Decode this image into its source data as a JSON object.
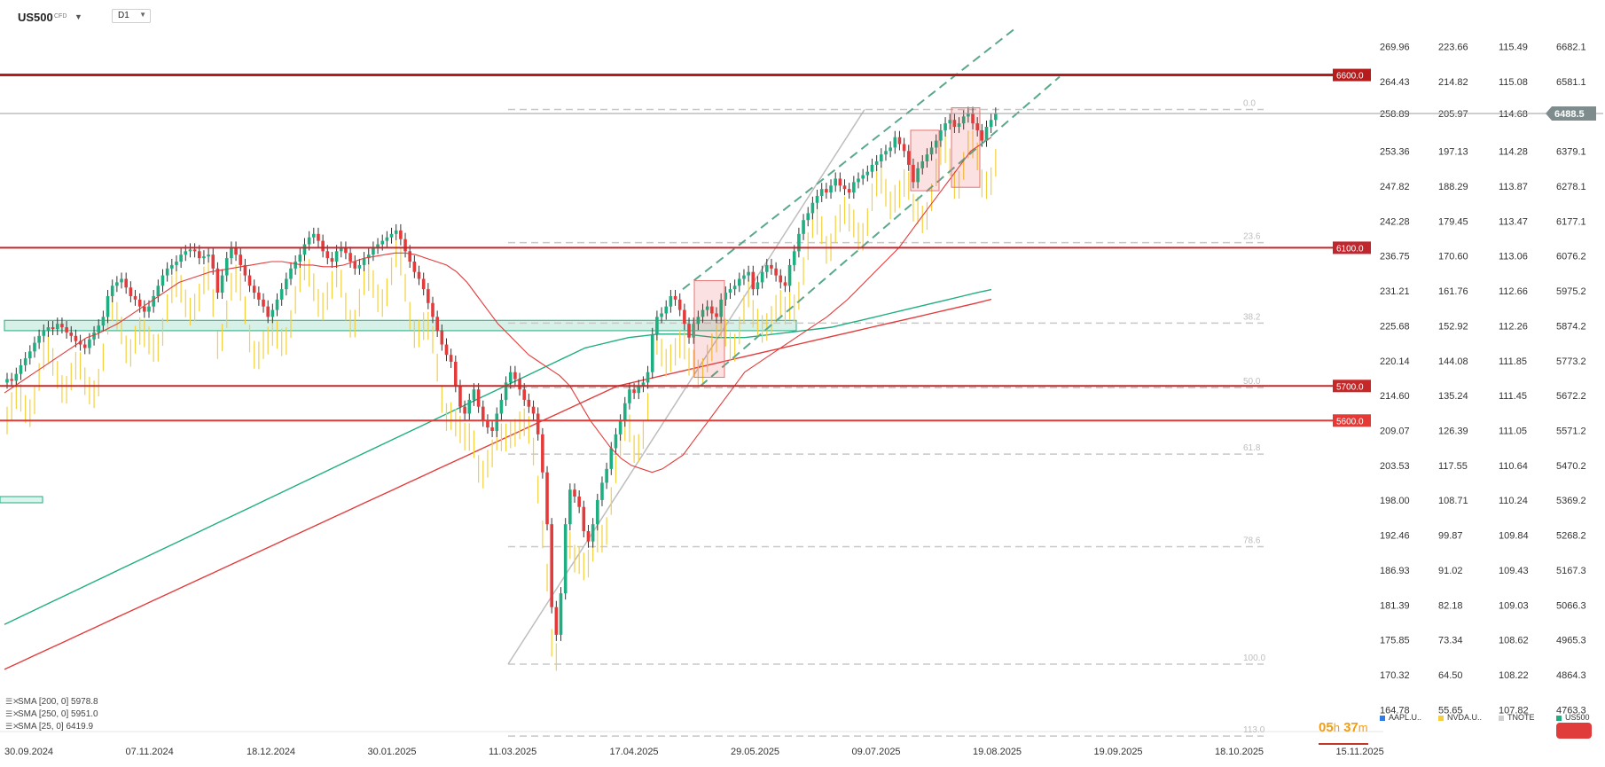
{
  "header": {
    "symbol": "US500",
    "symbol_sub": "CFD",
    "timeframe": "D1"
  },
  "legend": [
    {
      "label": "SMA [200, 0] 5978.8",
      "color": "#1fae81"
    },
    {
      "label": "SMA [250, 0] 5951.0",
      "color": "#e33b3b"
    },
    {
      "label": "SMA [25, 0] 6419.9",
      "color": "#e33b3b"
    }
  ],
  "timer": {
    "h": "05",
    "h_unit": "h",
    "m": "37",
    "m_unit": "m"
  },
  "column_legend": [
    {
      "label": "AAPL.U..",
      "color": "#2f7be8"
    },
    {
      "label": "NVDA.U..",
      "color": "#f4d03f"
    },
    {
      "label": "TNOTE",
      "color": "#cfcfcf"
    },
    {
      "label": "US500",
      "color": "#1fae81"
    }
  ],
  "chart_data": {
    "type": "candlestick",
    "title": "",
    "x_ticks": [
      "30.09.2024",
      "07.11.2024",
      "18.12.2024",
      "30.01.2025",
      "11.03.2025",
      "17.04.2025",
      "29.05.2025",
      "09.07.2025",
      "19.08.2025",
      "19.09.2025",
      "18.10.2025",
      "15.11.2025"
    ],
    "y_axes": [
      {
        "name": "AAPL",
        "ticks": [
          "269.96",
          "264.43",
          "258.89",
          "253.36",
          "247.82",
          "242.28",
          "236.75",
          "231.21",
          "225.68",
          "220.14",
          "214.60",
          "209.07",
          "203.53",
          "198.00",
          "192.46",
          "186.93",
          "181.39",
          "175.85",
          "170.32",
          "164.78"
        ]
      },
      {
        "name": "NVDA",
        "ticks": [
          "223.66",
          "214.82",
          "205.97",
          "197.13",
          "188.29",
          "179.45",
          "170.60",
          "161.76",
          "152.92",
          "144.08",
          "135.24",
          "126.39",
          "117.55",
          "108.71",
          "99.87",
          "91.02",
          "82.18",
          "73.34",
          "64.50",
          "55.65"
        ]
      },
      {
        "name": "TNOTE",
        "ticks": [
          "115.49",
          "115.08",
          "114.68",
          "114.28",
          "113.87",
          "113.47",
          "113.06",
          "112.66",
          "112.26",
          "111.85",
          "111.45",
          "111.05",
          "110.64",
          "110.24",
          "109.84",
          "109.43",
          "109.03",
          "108.62",
          "108.22",
          "107.82"
        ]
      },
      {
        "name": "US500",
        "ticks": [
          "6682.1",
          "6581.1",
          "6488.5",
          "6379.1",
          "6278.1",
          "6177.1",
          "6076.2",
          "5975.2",
          "5874.2",
          "5773.2",
          "5672.2",
          "5571.2",
          "5470.2",
          "5369.2",
          "5268.2",
          "5167.3",
          "5066.3",
          "4965.3",
          "4864.3",
          "4763.3"
        ]
      }
    ],
    "ylim": [
      4700,
      6740
    ],
    "current_price": "6488.5",
    "horizontal_levels": [
      {
        "value": 6600.0,
        "label": "6600.0",
        "color": "#b71c1c"
      },
      {
        "value": 6100.0,
        "label": "6100.0",
        "color": "#c0262d"
      },
      {
        "value": 5700.0,
        "label": "5700.0",
        "color": "#c62828"
      },
      {
        "value": 5600.0,
        "label": "5600.0",
        "color": "#e53935"
      }
    ],
    "fibonacci": [
      {
        "level": "0.0",
        "value": 6500
      },
      {
        "level": "23.6",
        "value": 6115
      },
      {
        "level": "38.2",
        "value": 5882
      },
      {
        "level": "50.0",
        "value": 5695
      },
      {
        "level": "61.8",
        "value": 5503
      },
      {
        "level": "78.6",
        "value": 5235
      },
      {
        "level": "100.0",
        "value": 4895
      },
      {
        "level": "113.0",
        "value": 4687
      }
    ],
    "us500_closes": [
      5720,
      5715,
      5735,
      5760,
      5780,
      5800,
      5825,
      5845,
      5860,
      5870,
      5865,
      5880,
      5870,
      5855,
      5845,
      5830,
      5820,
      5810,
      5835,
      5855,
      5875,
      5900,
      5960,
      5990,
      6000,
      6010,
      5985,
      5960,
      5950,
      5930,
      5915,
      5930,
      5960,
      5990,
      6020,
      6040,
      6050,
      6060,
      6080,
      6090,
      6095,
      6090,
      6070,
      6075,
      6080,
      6040,
      5970,
      6020,
      6070,
      6100,
      6080,
      6050,
      6020,
      5990,
      5970,
      5950,
      5930,
      5900,
      5920,
      5950,
      5980,
      6010,
      6040,
      6060,
      6080,
      6110,
      6130,
      6140,
      6120,
      6090,
      6070,
      6060,
      6090,
      6100,
      6085,
      6060,
      6040,
      6050,
      6070,
      6080,
      6100,
      6110,
      6120,
      6130,
      6140,
      6150,
      6125,
      6090,
      6060,
      6030,
      6010,
      5980,
      5940,
      5900,
      5860,
      5820,
      5790,
      5770,
      5700,
      5640,
      5620,
      5660,
      5690,
      5640,
      5600,
      5580,
      5570,
      5620,
      5660,
      5710,
      5740,
      5720,
      5690,
      5660,
      5640,
      5620,
      5560,
      5450,
      5300,
      5060,
      4980,
      5100,
      5300,
      5400,
      5380,
      5350,
      5280,
      5250,
      5300,
      5370,
      5420,
      5460,
      5520,
      5560,
      5600,
      5650,
      5690,
      5680,
      5700,
      5710,
      5740,
      5850,
      5900,
      5910,
      5930,
      5960,
      5950,
      5920,
      5880,
      5840,
      5880,
      5900,
      5920,
      5930,
      5910,
      5900,
      5950,
      5970,
      5980,
      5990,
      6010,
      6020,
      6030,
      5980,
      6000,
      6030,
      6050,
      6040,
      6020,
      6000,
      5990,
      6050,
      6090,
      6140,
      6180,
      6200,
      6230,
      6250,
      6270,
      6260,
      6280,
      6300,
      6280,
      6270,
      6260,
      6290,
      6300,
      6310,
      6320,
      6340,
      6350,
      6370,
      6380,
      6390,
      6420,
      6400,
      6380,
      6340,
      6290,
      6330,
      6350,
      6370,
      6390,
      6410,
      6440,
      6460,
      6470,
      6450,
      6460,
      6480,
      6490,
      6460,
      6440,
      6410,
      6450,
      6470,
      6488
    ],
    "sma_25": [
      5680,
      5700,
      5720,
      5740,
      5760,
      5780,
      5800,
      5820,
      5840,
      5850,
      5865,
      5880,
      5900,
      5920,
      5940,
      5960,
      5980,
      6000,
      6010,
      6020,
      6030,
      6035,
      6040,
      6045,
      6050,
      6055,
      6060,
      6060,
      6055,
      6050,
      6050,
      6045,
      6045,
      6050,
      6060,
      6070,
      6075,
      6080,
      6085,
      6085,
      6080,
      6070,
      6060,
      6050,
      6030,
      6000,
      5960,
      5920,
      5880,
      5850,
      5820,
      5790,
      5770,
      5750,
      5730,
      5700,
      5650,
      5600,
      5560,
      5520,
      5490,
      5470,
      5460,
      5450,
      5460,
      5480,
      5500,
      5540,
      5580,
      5620,
      5660,
      5700,
      5740,
      5760,
      5780,
      5800,
      5820,
      5840,
      5860,
      5880,
      5900,
      5925,
      5950,
      5980,
      6010,
      6040,
      6070,
      6100,
      6140,
      6180,
      6220,
      6260,
      6300,
      6340,
      6380,
      6400,
      6419.9
    ],
    "sma_200": [
      5010,
      5030,
      5050,
      5070,
      5090,
      5110,
      5130,
      5150,
      5170,
      5190,
      5210,
      5230,
      5250,
      5270,
      5290,
      5310,
      5330,
      5350,
      5370,
      5390,
      5410,
      5430,
      5450,
      5470,
      5490,
      5510,
      5530,
      5550,
      5570,
      5590,
      5610,
      5630,
      5650,
      5670,
      5690,
      5710,
      5730,
      5750,
      5770,
      5790,
      5810,
      5820,
      5830,
      5840,
      5845,
      5850,
      5850,
      5850,
      5845,
      5840,
      5840,
      5840,
      5845,
      5850,
      5855,
      5860,
      5865,
      5870,
      5880,
      5890,
      5900,
      5910,
      5920,
      5930,
      5940,
      5950,
      5960,
      5970,
      5978.8
    ],
    "sma_250": [
      4880,
      4900,
      4920,
      4940,
      4960,
      4980,
      5000,
      5020,
      5040,
      5060,
      5080,
      5100,
      5120,
      5140,
      5160,
      5180,
      5200,
      5220,
      5240,
      5260,
      5280,
      5300,
      5320,
      5340,
      5360,
      5380,
      5400,
      5420,
      5440,
      5460,
      5480,
      5500,
      5520,
      5540,
      5560,
      5580,
      5600,
      5620,
      5640,
      5660,
      5680,
      5700,
      5710,
      5720,
      5730,
      5740,
      5750,
      5760,
      5770,
      5780,
      5790,
      5800,
      5810,
      5820,
      5830,
      5840,
      5850,
      5860,
      5870,
      5880,
      5890,
      5900,
      5910,
      5920,
      5930,
      5940,
      5951.0
    ]
  }
}
